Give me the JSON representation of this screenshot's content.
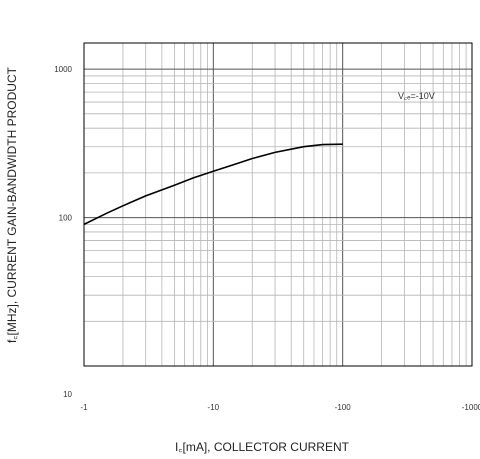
{
  "chart_data": {
    "type": "line",
    "xlabel": "I꜀[mA], COLLECTOR CURRENT",
    "ylabel": "f꜀[MHz], CURRENT GAIN-BANDWIDTH PRODUCT",
    "x_scale": "log",
    "y_scale": "log",
    "xlim": [
      1,
      1000
    ],
    "ylim": [
      10,
      1500
    ],
    "x_ticks": [
      1,
      10,
      100,
      1000
    ],
    "x_tick_labels": [
      "-1",
      "-10",
      "-100",
      "-1000"
    ],
    "y_ticks": [
      10,
      100,
      1000
    ],
    "y_tick_labels": [
      "10",
      "100",
      "1000"
    ],
    "grid": true,
    "annotation": "V꜀ₑ=-10V",
    "series": [
      {
        "x": [
          1,
          1.5,
          2,
          3,
          5,
          7,
          10,
          15,
          20,
          30,
          50,
          70,
          100
        ],
        "y": [
          90,
          107,
          120,
          140,
          165,
          185,
          205,
          230,
          250,
          275,
          300,
          310,
          312
        ]
      }
    ]
  }
}
